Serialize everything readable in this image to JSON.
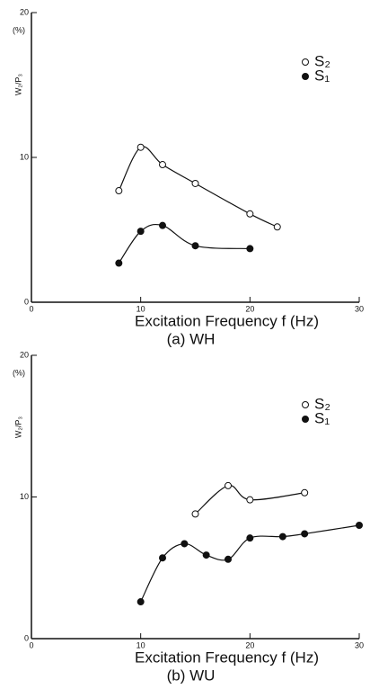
{
  "chart_data": [
    {
      "type": "line",
      "title": "(a) WH",
      "xlabel": "Excitation Frequency f (Hz)",
      "ylabel": "W₂/P₃",
      "yunit": "(%)",
      "xlim": [
        0,
        30
      ],
      "xticks": [
        0,
        10,
        20,
        30
      ],
      "ylim": [
        0,
        20
      ],
      "yticks": [
        0,
        10,
        20
      ],
      "legend": "upper right",
      "series": [
        {
          "name": "S₂",
          "color": "#111111",
          "marker": "open",
          "x": [
            8,
            10,
            12,
            15,
            20,
            22.5
          ],
          "values": [
            7.7,
            10.7,
            9.5,
            8.2,
            6.1,
            5.2
          ]
        },
        {
          "name": "S₁",
          "color": "#111111",
          "marker": "filled",
          "x": [
            8,
            10,
            12,
            15,
            20
          ],
          "values": [
            2.7,
            4.9,
            5.3,
            3.9,
            3.7
          ]
        }
      ]
    },
    {
      "type": "line",
      "title": "(b) WU",
      "xlabel": "Excitation Frequency f (Hz)",
      "ylabel": "W₂/P₃",
      "yunit": "(%)",
      "xlim": [
        0,
        30
      ],
      "xticks": [
        0,
        10,
        20,
        30
      ],
      "ylim": [
        0,
        20
      ],
      "yticks": [
        0,
        10,
        20
      ],
      "legend": "upper right",
      "series": [
        {
          "name": "S₂",
          "color": "#111111",
          "marker": "open",
          "x": [
            15,
            18,
            20,
            25
          ],
          "values": [
            8.8,
            10.8,
            9.8,
            10.3
          ]
        },
        {
          "name": "S₁",
          "color": "#111111",
          "marker": "filled",
          "x": [
            10,
            12,
            14,
            16,
            18,
            20,
            23,
            25,
            30
          ],
          "values": [
            2.6,
            5.7,
            6.7,
            5.9,
            5.6,
            7.1,
            7.2,
            7.4,
            8.0
          ]
        }
      ]
    }
  ]
}
